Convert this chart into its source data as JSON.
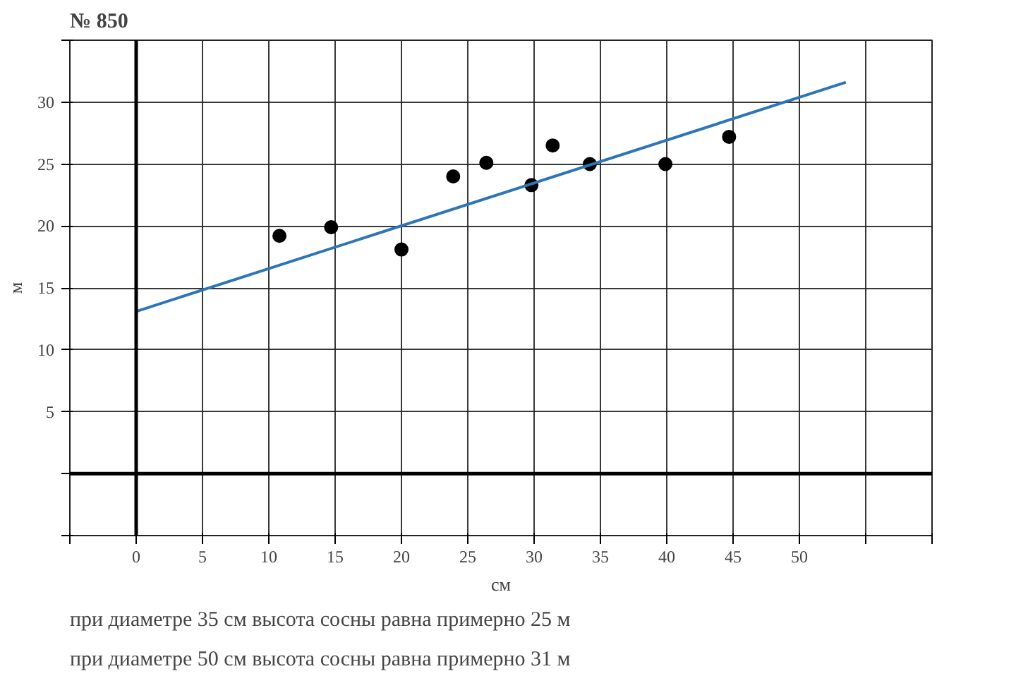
{
  "chart_data": {
    "type": "scatter",
    "title": "№ 850",
    "xlabel": "см",
    "ylabel": "м",
    "xlim": [
      -5,
      60
    ],
    "ylim": [
      -5,
      35
    ],
    "xticks": [
      {
        "value": -5,
        "label": null
      },
      0,
      5,
      10,
      15,
      20,
      25,
      30,
      35,
      40,
      45,
      50,
      {
        "value": 55,
        "label": null
      },
      {
        "value": 60,
        "label": null
      }
    ],
    "yticks": [
      {
        "value": -5,
        "label": null
      },
      {
        "value": 0,
        "label": null
      },
      5,
      10,
      15,
      20,
      25,
      30,
      {
        "value": 35,
        "label": null
      }
    ],
    "grid": true,
    "series": [
      {
        "type": "scatter",
        "marker": "circle",
        "color": "#000000",
        "x": [
          10.8,
          14.7,
          20.0,
          23.9,
          26.4,
          29.8,
          31.4,
          34.2,
          39.9,
          44.7
        ],
        "values": [
          19.2,
          19.9,
          18.1,
          24.0,
          25.1,
          23.3,
          26.5,
          25.0,
          25.0,
          27.2
        ]
      },
      {
        "type": "line",
        "color": "#2e75b6",
        "line_style": "solid",
        "x": [
          0,
          53.5
        ],
        "values": [
          13.1,
          31.6
        ]
      }
    ],
    "annotations": [
      "при диаметре 35 см высота сосны равна примерно 25 м",
      "при диаметре 50 см высота сосны равна примерно 31 м"
    ]
  }
}
